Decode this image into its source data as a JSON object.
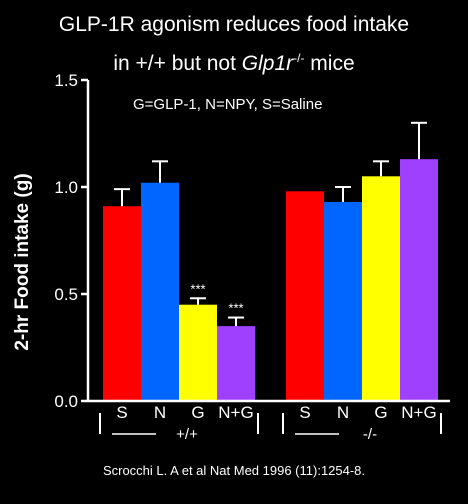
{
  "title_line1": "GLP-1R agonism reduces food intake",
  "title_line2_prefix": "in +/+ but not ",
  "title_line2_gene": "Glp1r",
  "title_line2_sup": "-/-",
  "title_line2_suffix": " mice",
  "legend_text": "G=GLP-1, N=NPY, S=Saline",
  "citation": "Scrocchi L. A et al Nat Med 1996 (11):1254-8.",
  "chart_data": {
    "type": "bar",
    "ylabel": "2-hr Food intake (g)",
    "ylim": [
      0,
      1.5
    ],
    "yticks": [
      "0.0",
      "0.5",
      "1.0",
      "1.5"
    ],
    "ytick_values": [
      0,
      0.5,
      1.0,
      1.5
    ],
    "groups": [
      {
        "name": "+/+",
        "bars": [
          {
            "label": "S",
            "value": 0.91,
            "error": 0.08,
            "color": "#ff0000",
            "annotation": ""
          },
          {
            "label": "N",
            "value": 1.02,
            "error": 0.1,
            "color": "#0066ff",
            "annotation": ""
          },
          {
            "label": "G",
            "value": 0.45,
            "error": 0.03,
            "color": "#ffff00",
            "annotation": "***"
          },
          {
            "label": "N+G",
            "value": 0.35,
            "error": 0.04,
            "color": "#a040ff",
            "annotation": "***"
          }
        ]
      },
      {
        "name": "-/-",
        "bars": [
          {
            "label": "S",
            "value": 0.98,
            "error": 0.0,
            "color": "#ff0000",
            "annotation": ""
          },
          {
            "label": "N",
            "value": 0.93,
            "error": 0.07,
            "color": "#0066ff",
            "annotation": ""
          },
          {
            "label": "G",
            "value": 1.05,
            "error": 0.07,
            "color": "#ffff00",
            "annotation": ""
          },
          {
            "label": "N+G",
            "value": 1.13,
            "error": 0.17,
            "color": "#a040ff",
            "annotation": ""
          }
        ]
      }
    ]
  }
}
